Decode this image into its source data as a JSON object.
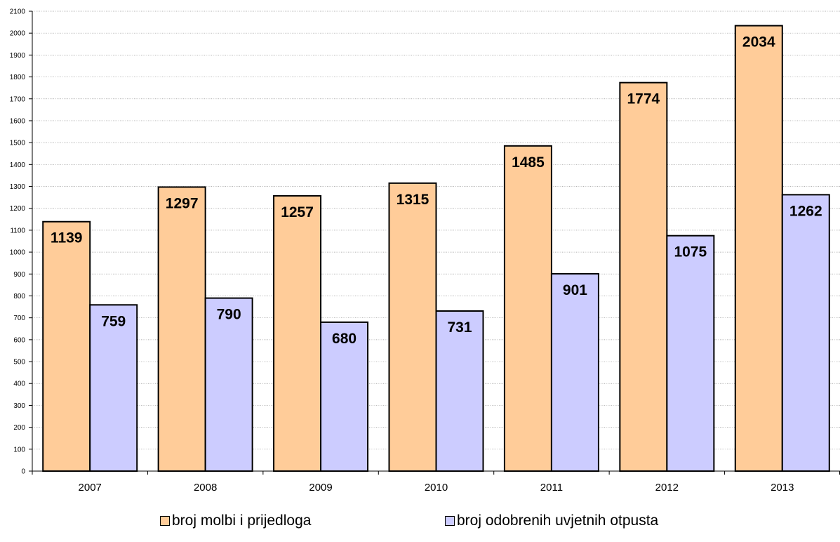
{
  "chart_data": {
    "type": "bar",
    "categories": [
      "2007",
      "2008",
      "2009",
      "2010",
      "2011",
      "2012",
      "2013"
    ],
    "series": [
      {
        "name": "broj molbi i prijedloga",
        "values": [
          1139,
          1297,
          1257,
          1315,
          1485,
          1774,
          2034
        ],
        "color": "#FFCC99"
      },
      {
        "name": "broj odobrenih uvjetnih otpusta",
        "values": [
          759,
          790,
          680,
          731,
          901,
          1075,
          1262
        ],
        "color": "#CCCCFF"
      }
    ],
    "ylim": [
      0,
      2100
    ],
    "yticks": [
      0,
      100,
      200,
      300,
      400,
      500,
      600,
      700,
      800,
      900,
      1000,
      1100,
      1200,
      1300,
      1400,
      1500,
      1600,
      1700,
      1800,
      1900,
      2000,
      2100
    ],
    "title": "",
    "xlabel": "",
    "ylabel": "",
    "grid": true,
    "legend_position": "bottom",
    "data_labels": true
  }
}
